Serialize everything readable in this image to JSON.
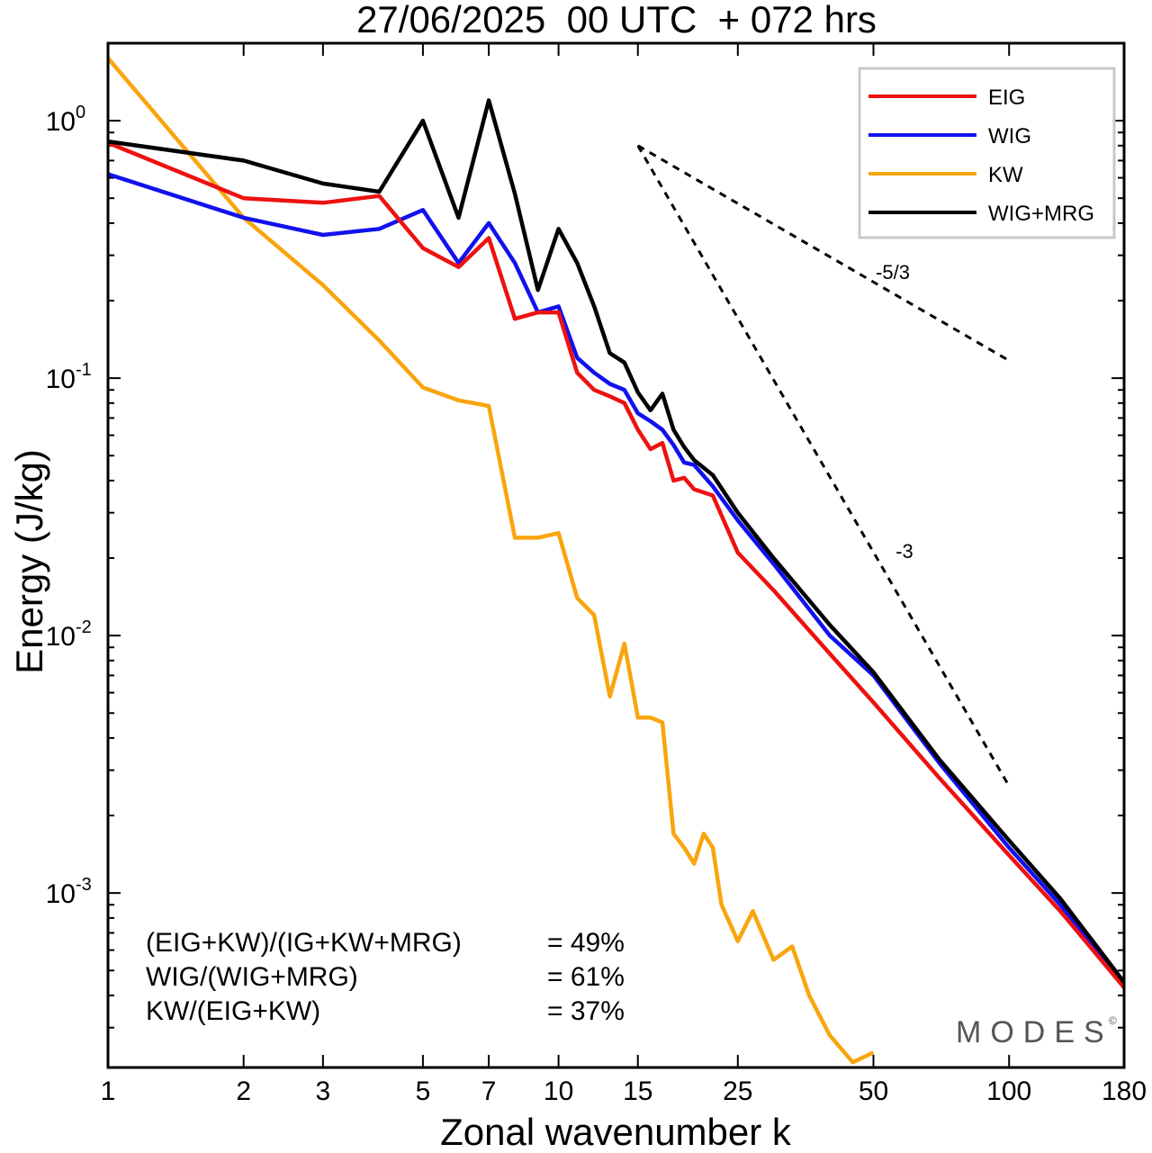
{
  "chart_data": {
    "type": "line",
    "title": "27/06/2025  00 UTC  + 072 hrs",
    "xlabel": "Zonal wavenumber k",
    "ylabel": "Energy (J/kg)",
    "x_scale": "log",
    "y_scale": "log",
    "xlim": [
      1,
      180
    ],
    "ylim": [
      0.00021,
      2.0
    ],
    "x_ticks": [
      1,
      2,
      3,
      5,
      7,
      10,
      15,
      25,
      50,
      100,
      180
    ],
    "y_ticks": [
      {
        "value": 1,
        "base": "10",
        "exp": "0"
      },
      {
        "value": 0.1,
        "base": "10",
        "exp": "-1"
      },
      {
        "value": 0.01,
        "base": "10",
        "exp": "-2"
      },
      {
        "value": 0.001,
        "base": "10",
        "exp": "-3"
      }
    ],
    "grid": false,
    "legend_position": "top-right",
    "series": [
      {
        "name": "EIG",
        "color": "#ee1111",
        "x": [
          1,
          2,
          3,
          4,
          5,
          6,
          7,
          8,
          9,
          10,
          11,
          12,
          13,
          14,
          15,
          16,
          17,
          18,
          19,
          20,
          22,
          25,
          30,
          40,
          50,
          70,
          100,
          130,
          180
        ],
        "values": [
          0.82,
          0.5,
          0.48,
          0.51,
          0.32,
          0.27,
          0.35,
          0.17,
          0.18,
          0.18,
          0.105,
          0.09,
          0.085,
          0.08,
          0.063,
          0.053,
          0.056,
          0.04,
          0.041,
          0.037,
          0.035,
          0.021,
          0.015,
          0.0085,
          0.0055,
          0.0028,
          0.0014,
          0.00085,
          0.00043
        ]
      },
      {
        "name": "WIG",
        "color": "#1111ee",
        "x": [
          1,
          2,
          3,
          4,
          5,
          6,
          7,
          8,
          9,
          10,
          11,
          12,
          13,
          14,
          15,
          16,
          17,
          18,
          19,
          20,
          22,
          25,
          30,
          40,
          50,
          70,
          100,
          130,
          180
        ],
        "values": [
          0.62,
          0.42,
          0.36,
          0.38,
          0.45,
          0.28,
          0.4,
          0.28,
          0.18,
          0.19,
          0.12,
          0.105,
          0.095,
          0.09,
          0.073,
          0.068,
          0.063,
          0.055,
          0.047,
          0.046,
          0.038,
          0.028,
          0.019,
          0.01,
          0.007,
          0.0032,
          0.0015,
          0.0009,
          0.00043
        ]
      },
      {
        "name": "KW",
        "color": "#f9a50d",
        "x": [
          1,
          2,
          3,
          4,
          5,
          6,
          7,
          8,
          9,
          10,
          11,
          12,
          13,
          14,
          15,
          16,
          17,
          18,
          19,
          20,
          21,
          22,
          23,
          25,
          27,
          30,
          33,
          36,
          40,
          45,
          50
        ],
        "values": [
          1.75,
          0.42,
          0.23,
          0.14,
          0.092,
          0.082,
          0.078,
          0.024,
          0.024,
          0.025,
          0.014,
          0.012,
          0.0058,
          0.0093,
          0.0048,
          0.0048,
          0.0046,
          0.0017,
          0.0015,
          0.0013,
          0.0017,
          0.0015,
          0.0009,
          0.00065,
          0.00085,
          0.00055,
          0.00062,
          0.0004,
          0.00028,
          0.00022,
          0.00024
        ]
      },
      {
        "name": "WIG+MRG",
        "color": "#000000",
        "x": [
          1,
          2,
          3,
          4,
          5,
          6,
          7,
          8,
          9,
          10,
          11,
          12,
          13,
          14,
          15,
          16,
          17,
          18,
          19,
          20,
          22,
          25,
          30,
          40,
          50,
          70,
          100,
          130,
          180
        ],
        "values": [
          0.83,
          0.7,
          0.57,
          0.53,
          1.0,
          0.42,
          1.2,
          0.52,
          0.22,
          0.38,
          0.28,
          0.19,
          0.125,
          0.115,
          0.088,
          0.075,
          0.087,
          0.063,
          0.054,
          0.048,
          0.042,
          0.03,
          0.02,
          0.011,
          0.0072,
          0.0033,
          0.0016,
          0.00095,
          0.00045
        ]
      }
    ],
    "reference_lines": [
      {
        "label": "-5/3",
        "x": [
          15,
          100
        ],
        "values": [
          0.8,
          0.117
        ]
      },
      {
        "label": "-3",
        "x": [
          15,
          100
        ],
        "values": [
          0.8,
          0.0026
        ]
      }
    ],
    "stats": [
      {
        "label": "(EIG+KW)/(IG+KW+MRG)",
        "value": "= 49%"
      },
      {
        "label": "WIG/(WIG+MRG)",
        "value": "= 61%"
      },
      {
        "label": "KW/(EIG+KW)",
        "value": "= 37%"
      }
    ],
    "watermark": "MODES",
    "watermark_mark": "©"
  }
}
